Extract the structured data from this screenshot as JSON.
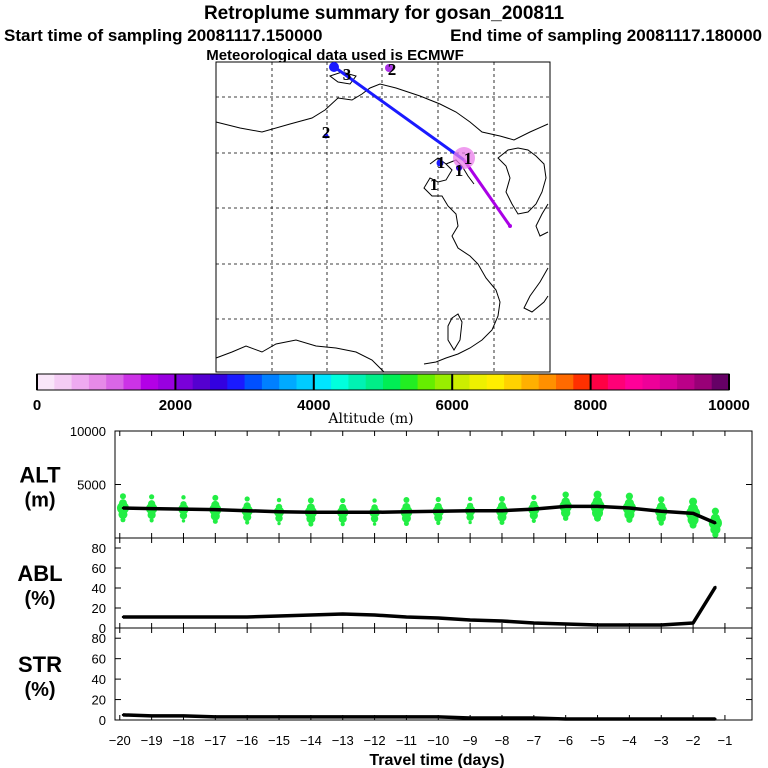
{
  "header": {
    "title": "Retroplume summary for gosan_200811",
    "start_time": "Start time of sampling 20081117.150000",
    "end_time": "End time of sampling 20081117.180000",
    "met_data": "Meteorological data used is ECMWF"
  },
  "map": {
    "point_labels": [
      "1",
      "1",
      "1",
      "1",
      "2",
      "2",
      "3"
    ]
  },
  "colorbar": {
    "tick_labels": [
      "0",
      "2000",
      "4000",
      "6000",
      "8000",
      "10000"
    ],
    "label": "Altitude (m)",
    "colors": [
      "#f9e6f9",
      "#f4ccf4",
      "#eeaaf0",
      "#e68ae8",
      "#d966e6",
      "#cc33e6",
      "#b300e6",
      "#9900e0",
      "#7a00d9",
      "#5500d0",
      "#3300e0",
      "#1a1aff",
      "#0050ff",
      "#0080ff",
      "#00aaff",
      "#00ccff",
      "#00e5ff",
      "#00ffdd",
      "#00f2b3",
      "#00ee88",
      "#00ee55",
      "#22ee22",
      "#66ee00",
      "#99ee00",
      "#ccee00",
      "#eef000",
      "#ffee00",
      "#ffd200",
      "#ffb000",
      "#ff9000",
      "#ff6a00",
      "#ff3000",
      "#ff0044",
      "#ff0077",
      "#ff0099",
      "#ee0099",
      "#d60099",
      "#bb0088",
      "#990077",
      "#660066"
    ]
  },
  "chart_data": [
    {
      "type": "line",
      "panel": "ALT",
      "title_line1": "ALT",
      "title_line2": "(m)",
      "ylim": [
        0,
        10000
      ],
      "yticks": [
        0,
        5000,
        10000
      ],
      "ytick_labels": [
        "",
        "5000",
        "10000"
      ],
      "x": [
        -19.9,
        -19,
        -18,
        -17,
        -16,
        -15,
        -14,
        -13,
        -12,
        -11,
        -10,
        -9,
        -8,
        -7,
        -6,
        -5,
        -4,
        -3,
        -2,
        -1.3
      ],
      "values": [
        2800,
        2750,
        2700,
        2650,
        2550,
        2450,
        2400,
        2400,
        2400,
        2450,
        2500,
        2550,
        2550,
        2700,
        2950,
        2950,
        2800,
        2500,
        2300,
        1400
      ],
      "scatter_color": "#22ee44"
    },
    {
      "type": "line",
      "panel": "ABL",
      "title_line1": "ABL",
      "title_line2": "(%)",
      "ylim": [
        0,
        90
      ],
      "yticks": [
        0,
        20,
        40,
        60,
        80
      ],
      "ytick_labels": [
        "0",
        "20",
        "40",
        "60",
        "80"
      ],
      "x": [
        -19.9,
        -18,
        -16,
        -15,
        -14,
        -13,
        -12,
        -11,
        -10,
        -9,
        -8,
        -7,
        -6,
        -5,
        -4,
        -3,
        -2,
        -1.3
      ],
      "values": [
        11,
        11,
        11,
        12,
        13,
        14,
        13,
        11,
        10,
        8,
        7,
        5,
        4,
        3,
        3,
        3,
        5,
        41
      ]
    },
    {
      "type": "line",
      "panel": "STR",
      "title_line1": "STR",
      "title_line2": "(%)",
      "ylim": [
        0,
        90
      ],
      "yticks": [
        0,
        20,
        40,
        60,
        80
      ],
      "ytick_labels": [
        "0",
        "20",
        "40",
        "60",
        "80"
      ],
      "x": [
        -19.9,
        -19,
        -18,
        -17,
        -16,
        -15,
        -14,
        -13,
        -12,
        -11,
        -10,
        -9,
        -8,
        -7,
        -6,
        -5,
        -4,
        -3,
        -2,
        -1.3
      ],
      "values": [
        5,
        4,
        4,
        3,
        3,
        3,
        3,
        3,
        3,
        3,
        3,
        2,
        2,
        2,
        1,
        1,
        1,
        1,
        1,
        1
      ]
    }
  ],
  "xaxis": {
    "xlim": [
      -20.15,
      -0.15
    ],
    "ticks": [
      -20,
      -19,
      -18,
      -17,
      -16,
      -15,
      -14,
      -13,
      -12,
      -11,
      -10,
      -9,
      -8,
      -7,
      -6,
      -5,
      -4,
      -3,
      -2,
      -1
    ],
    "tick_labels": [
      "−20",
      "−19",
      "−18",
      "−17",
      "−16",
      "−15",
      "−14",
      "−13",
      "−12",
      "−11",
      "−10",
      "−9",
      "−8",
      "−7",
      "−6",
      "−5",
      "−4",
      "−3",
      "−2",
      "−1"
    ],
    "label": "Travel time (days)"
  }
}
